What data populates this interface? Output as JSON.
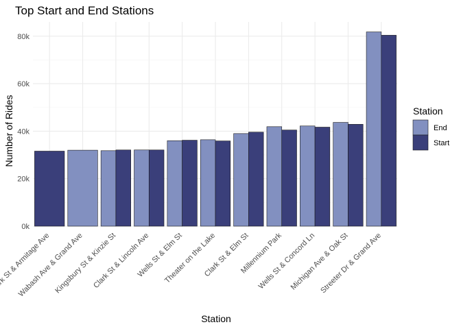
{
  "chart_data": {
    "type": "bar",
    "title": "Top Start and End Stations",
    "xlabel": "Station",
    "ylabel": "Number of Rides",
    "ylim": [
      0,
      86000
    ],
    "yticks": [
      0,
      20000,
      40000,
      60000,
      80000
    ],
    "ytick_labels": [
      "0k",
      "20k",
      "40k",
      "60k",
      "80k"
    ],
    "grid": true,
    "legend": {
      "title": "Station",
      "placement": "right"
    },
    "categories": [
      "Clark St & Armitage Ave",
      "Wabash Ave & Grand Ave",
      "Kingsbury St & Kinzie St",
      "Clark St & Lincoln Ave",
      "Wells St & Elm St",
      "Theater on the Lake",
      "Clark St & Elm St",
      "Millennium Park",
      "Wells St & Concord Ln",
      "Michigan Ave & Oak St",
      "Streeter Dr & Grand Ave"
    ],
    "series": [
      {
        "name": "End",
        "color": "#8290c0",
        "values": [
          null,
          32000,
          31800,
          32100,
          36000,
          36400,
          39000,
          41900,
          42200,
          43700,
          81800
        ]
      },
      {
        "name": "Start",
        "color": "#3a3f7a",
        "values": [
          31600,
          null,
          32100,
          32100,
          36200,
          35900,
          39600,
          40500,
          41700,
          42900,
          80400
        ]
      }
    ]
  }
}
